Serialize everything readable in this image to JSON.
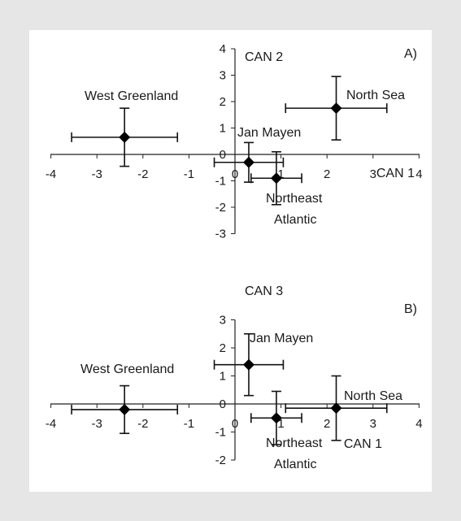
{
  "chart_data": [
    {
      "type": "scatter",
      "panel_label": "A)",
      "xlabel": "CAN 1",
      "ylabel": "CAN 2",
      "xlim": [
        -4,
        4
      ],
      "ylim": [
        -3,
        4
      ],
      "x_ticks": [
        "-4",
        "-3",
        "-2",
        "-1",
        "0",
        "1",
        "2",
        "3",
        "4"
      ],
      "y_ticks": [
        "4",
        "3",
        "2",
        "1",
        "0",
        "-1",
        "-2",
        "-3"
      ],
      "points": [
        {
          "label": "West Greenland",
          "x": -2.4,
          "y": 0.65,
          "x_err": 1.15,
          "y_err": 1.1
        },
        {
          "label": "Jan Mayen",
          "x": 0.3,
          "y": -0.3,
          "x_err": 0.75,
          "y_err": 0.75
        },
        {
          "label": "Northeast Atlantic",
          "x": 0.9,
          "y": -0.9,
          "x_err": 0.55,
          "y_err": 1.0
        },
        {
          "label": "North Sea",
          "x": 2.2,
          "y": 1.75,
          "x_err": 1.1,
          "y_err": 1.2
        }
      ]
    },
    {
      "type": "scatter",
      "panel_label": "B)",
      "xlabel": "CAN 1",
      "ylabel": "CAN 3",
      "xlim": [
        -4,
        4
      ],
      "ylim": [
        -2,
        3
      ],
      "x_ticks": [
        "-4",
        "-3",
        "-2",
        "-1",
        "0",
        "1",
        "2",
        "3",
        "4"
      ],
      "y_ticks": [
        "3",
        "2",
        "1",
        "0",
        "-1",
        "-2"
      ],
      "points": [
        {
          "label": "West Greenland",
          "x": -2.4,
          "y": -0.2,
          "x_err": 1.15,
          "y_err": 0.85
        },
        {
          "label": "Jan Mayen",
          "x": 0.3,
          "y": 1.4,
          "x_err": 0.75,
          "y_err": 1.1
        },
        {
          "label": "Northeast Atlantic",
          "x": 0.9,
          "y": -0.5,
          "x_err": 0.55,
          "y_err": 0.95
        },
        {
          "label": "North Sea",
          "x": 2.2,
          "y": -0.15,
          "x_err": 1.1,
          "y_err": 1.15
        }
      ]
    }
  ]
}
